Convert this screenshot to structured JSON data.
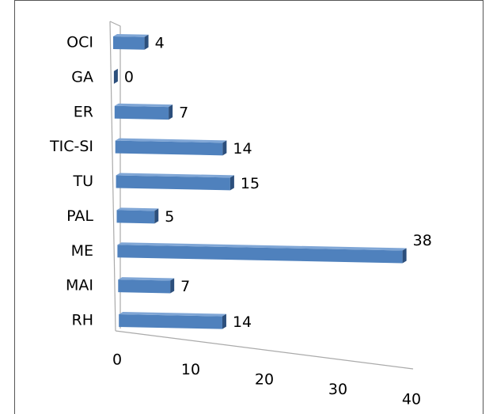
{
  "chart_data": {
    "type": "bar",
    "orientation": "horizontal",
    "categories": [
      "OCI",
      "GA",
      "ER",
      "TIC-SI",
      "TU",
      "PAL",
      "ME",
      "MAI",
      "RH"
    ],
    "values": [
      4,
      0,
      7,
      14,
      15,
      5,
      38,
      7,
      14
    ],
    "color": "#4f81bd",
    "xlim": [
      0,
      40
    ],
    "xticks": [
      0,
      10,
      20,
      30,
      40
    ]
  }
}
